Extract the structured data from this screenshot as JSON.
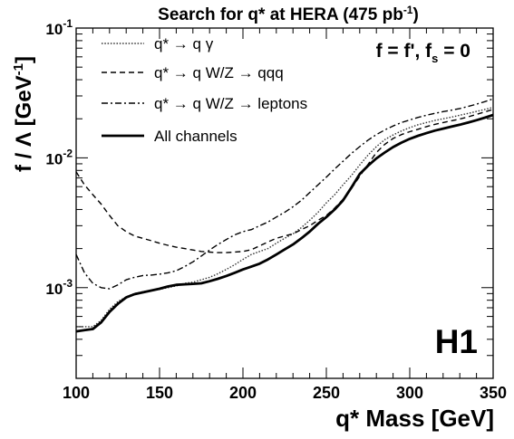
{
  "chart_data": {
    "type": "line",
    "title": {
      "main": "Search for q* at HERA (475 pb",
      "sup": "-1",
      "end": ")"
    },
    "xlabel": "q* Mass [GeV]",
    "ylabel": {
      "main": "f / Λ [GeV",
      "sup": "-1",
      "end": "]"
    },
    "annotation": {
      "p1": "f = f', f",
      "sub": "s",
      "p2": " = 0"
    },
    "experiment_label": "H1",
    "xlim": [
      100,
      350
    ],
    "ylim": [
      0.0002,
      0.1
    ],
    "yscale": "log",
    "x_ticks": [
      100,
      150,
      200,
      250,
      300,
      350
    ],
    "y_ticks": [
      {
        "value": 0.001,
        "base": "10",
        "exp": "-3"
      },
      {
        "value": 0.01,
        "base": "10",
        "exp": "-2"
      },
      {
        "value": 0.1,
        "base": "10",
        "exp": "-1"
      }
    ],
    "legend_position": "top-left",
    "series": [
      {
        "name": "q* → q γ",
        "style": "dotted",
        "x": [
          100,
          105,
          110,
          115,
          120,
          125,
          130,
          135,
          140,
          145,
          150,
          155,
          160,
          165,
          170,
          175,
          180,
          185,
          190,
          195,
          200,
          205,
          210,
          215,
          220,
          225,
          230,
          235,
          240,
          245,
          250,
          255,
          260,
          265,
          270,
          275,
          280,
          285,
          290,
          295,
          300,
          305,
          310,
          315,
          320,
          325,
          330,
          335,
          340,
          345,
          350
        ],
        "y": [
          0.0005,
          0.0005,
          0.0005,
          0.00056,
          0.00068,
          0.00078,
          0.00085,
          0.0009,
          0.00093,
          0.00095,
          0.00097,
          0.001,
          0.00103,
          0.00108,
          0.0011,
          0.00115,
          0.0012,
          0.00128,
          0.00138,
          0.0015,
          0.00165,
          0.0018,
          0.0019,
          0.002,
          0.0022,
          0.0024,
          0.0026,
          0.0029,
          0.0033,
          0.0038,
          0.0045,
          0.0052,
          0.0062,
          0.0073,
          0.0088,
          0.0105,
          0.0122,
          0.0138,
          0.015,
          0.0161,
          0.0171,
          0.018,
          0.0187,
          0.0194,
          0.02,
          0.0206,
          0.0213,
          0.022,
          0.0228,
          0.0236,
          0.0245
        ]
      },
      {
        "name": "q* → q W/Z → qqq",
        "style": "dashed",
        "x": [
          100,
          105,
          110,
          115,
          120,
          125,
          130,
          135,
          140,
          145,
          150,
          155,
          160,
          165,
          170,
          175,
          180,
          185,
          190,
          195,
          200,
          205,
          210,
          215,
          220,
          225,
          230,
          235,
          240,
          245,
          250,
          255,
          260,
          265,
          270,
          275,
          280,
          285,
          290,
          295,
          300,
          305,
          310,
          315,
          320,
          325,
          330,
          335,
          340,
          345,
          350
        ],
        "y": [
          0.0078,
          0.0062,
          0.0052,
          0.0044,
          0.0036,
          0.003,
          0.0027,
          0.0025,
          0.0024,
          0.0023,
          0.0022,
          0.00212,
          0.00205,
          0.002,
          0.00195,
          0.0019,
          0.00188,
          0.00186,
          0.00186,
          0.00188,
          0.0019,
          0.00196,
          0.0021,
          0.00225,
          0.0024,
          0.0025,
          0.0026,
          0.0028,
          0.003,
          0.0033,
          0.0036,
          0.0041,
          0.0048,
          0.0058,
          0.0072,
          0.0089,
          0.011,
          0.0127,
          0.0141,
          0.0151,
          0.0159,
          0.0166,
          0.0174,
          0.0181,
          0.0187,
          0.0193,
          0.0199,
          0.0207,
          0.0216,
          0.0226,
          0.0236
        ]
      },
      {
        "name": "q* → q W/Z → leptons",
        "style": "dashdot",
        "x": [
          100,
          105,
          110,
          115,
          120,
          125,
          130,
          135,
          140,
          145,
          150,
          155,
          160,
          165,
          170,
          175,
          180,
          185,
          190,
          195,
          200,
          205,
          210,
          215,
          220,
          225,
          230,
          235,
          240,
          245,
          250,
          255,
          260,
          265,
          270,
          275,
          280,
          285,
          290,
          295,
          300,
          305,
          310,
          315,
          320,
          325,
          330,
          335,
          340,
          345,
          350
        ],
        "y": [
          0.0018,
          0.0013,
          0.00108,
          0.001,
          0.00098,
          0.00105,
          0.00115,
          0.0012,
          0.00124,
          0.00125,
          0.00127,
          0.0013,
          0.00135,
          0.00145,
          0.00158,
          0.00175,
          0.00195,
          0.00215,
          0.00235,
          0.00255,
          0.0027,
          0.0028,
          0.003,
          0.0032,
          0.0035,
          0.0038,
          0.0042,
          0.0047,
          0.0054,
          0.0062,
          0.0071,
          0.0082,
          0.0094,
          0.0108,
          0.0122,
          0.0137,
          0.0151,
          0.0164,
          0.0176,
          0.0187,
          0.0196,
          0.0205,
          0.0213,
          0.022,
          0.0227,
          0.0233,
          0.024,
          0.0249,
          0.0259,
          0.0271,
          0.0285
        ]
      },
      {
        "name": "All channels",
        "style": "solid-thick",
        "x": [
          100,
          105,
          110,
          115,
          120,
          125,
          130,
          135,
          140,
          145,
          150,
          155,
          160,
          165,
          170,
          175,
          180,
          185,
          190,
          195,
          200,
          205,
          210,
          215,
          220,
          225,
          230,
          235,
          240,
          245,
          250,
          255,
          260,
          265,
          270,
          275,
          280,
          285,
          290,
          295,
          300,
          305,
          310,
          315,
          320,
          325,
          330,
          335,
          340,
          345,
          350
        ],
        "y": [
          0.00046,
          0.00047,
          0.00048,
          0.00054,
          0.00065,
          0.00075,
          0.00084,
          0.00089,
          0.00092,
          0.00095,
          0.00098,
          0.00102,
          0.00105,
          0.00106,
          0.00107,
          0.00108,
          0.00112,
          0.00117,
          0.00123,
          0.0013,
          0.00138,
          0.00145,
          0.00153,
          0.00165,
          0.0018,
          0.00197,
          0.00215,
          0.0024,
          0.0027,
          0.0031,
          0.0035,
          0.004,
          0.0047,
          0.0059,
          0.0075,
          0.0087,
          0.0099,
          0.011,
          0.0121,
          0.0131,
          0.014,
          0.0148,
          0.0155,
          0.0162,
          0.0168,
          0.0174,
          0.018,
          0.0187,
          0.0195,
          0.0204,
          0.0214
        ]
      }
    ]
  }
}
